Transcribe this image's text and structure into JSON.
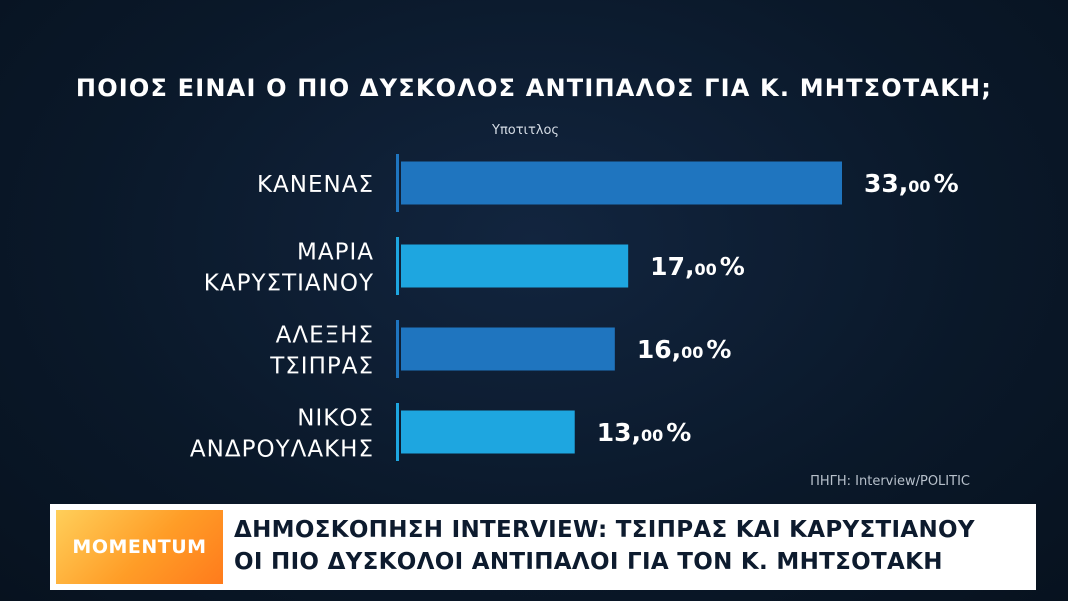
{
  "chart_data": {
    "type": "bar",
    "orientation": "horizontal",
    "title": "ΠΟΙΟΣ ΕΙΝΑΙ Ο ΠΙΟ ΔΥΣΚΟΛΟΣ ΑΝΤΙΠΑΛΟΣ ΓΙΑ Κ. ΜΗΤΣΟΤΑΚΗ;",
    "subtitle": "Υποτιτλος",
    "categories": [
      [
        "ΚΑΝΕΝΑΣ"
      ],
      [
        "ΜΑΡΙΑ",
        "ΚΑΡΥΣΤΙΑΝΟΥ"
      ],
      [
        "ΑΛΕΞΗΣ",
        "ΤΣΙΠΡΑΣ"
      ],
      [
        "ΝΙΚΟΣ",
        "ΑΝΔΡΟΥΛΑΚΗΣ"
      ]
    ],
    "values": [
      33,
      17,
      16,
      13
    ],
    "value_labels": [
      {
        "int": "33,",
        "dec": "00",
        "pct": "%"
      },
      {
        "int": "17,",
        "dec": "00",
        "pct": "%"
      },
      {
        "int": "16,",
        "dec": "00",
        "pct": "%"
      },
      {
        "int": "13,",
        "dec": "00",
        "pct": "%"
      }
    ],
    "bar_colors": [
      "#1f75bf",
      "#1ea6e0",
      "#1f75bf",
      "#1ea6e0"
    ],
    "xlim": [
      0,
      33
    ],
    "legend": "none",
    "grid": false
  },
  "source": "ΠΗΓΗ: Interview/POLITIC",
  "ticker": {
    "logo_text": "MOMENTUM",
    "headline_line1": "ΔΗΜΟΣΚΟΠΗΣΗ INTERVIEW: ΤΣΙΠΡΑΣ ΚΑΙ ΚΑΡΥΣΤΙΑΝΟΥ",
    "headline_line2": "ΟΙ ΠΙΟ ΔΥΣΚΟΛΟΙ ΑΝΤΙΠΑΛΟΙ ΓΙΑ ΤΟΝ Κ. ΜΗΤΣΟΤΑΚΗ"
  },
  "colors": {
    "background": "#0b1a2e",
    "bar_dark": "#1f75bf",
    "bar_light": "#1ea6e0",
    "ticker_bg": "#ffffff",
    "logo_orange": "#ff9d27"
  }
}
